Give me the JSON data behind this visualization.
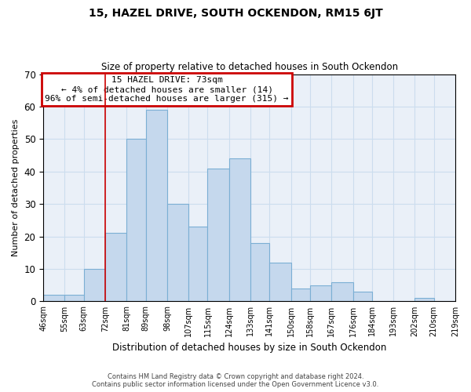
{
  "title": "15, HAZEL DRIVE, SOUTH OCKENDON, RM15 6JT",
  "subtitle": "Size of property relative to detached houses in South Ockendon",
  "xlabel": "Distribution of detached houses by size in South Ockendon",
  "ylabel": "Number of detached properties",
  "bar_color": "#c5d8ed",
  "bar_edge_color": "#7bafd4",
  "annotation_line1": "15 HAZEL DRIVE: 73sqm",
  "annotation_line2": "← 4% of detached houses are smaller (14)",
  "annotation_line3": "96% of semi-detached houses are larger (315) →",
  "annotation_box_color": "#cc0000",
  "vline_color": "#cc0000",
  "footer_line1": "Contains HM Land Registry data © Crown copyright and database right 2024.",
  "footer_line2": "Contains public sector information licensed under the Open Government Licence v3.0.",
  "bins": [
    46,
    55,
    63,
    72,
    81,
    89,
    98,
    107,
    115,
    124,
    133,
    141,
    150,
    158,
    167,
    176,
    184,
    193,
    202,
    210,
    219
  ],
  "values": [
    2,
    2,
    10,
    21,
    50,
    59,
    30,
    23,
    41,
    44,
    18,
    12,
    4,
    5,
    6,
    3,
    0,
    0,
    1,
    0
  ],
  "tick_labels": [
    "46sqm",
    "55sqm",
    "63sqm",
    "72sqm",
    "81sqm",
    "89sqm",
    "98sqm",
    "107sqm",
    "115sqm",
    "124sqm",
    "133sqm",
    "141sqm",
    "150sqm",
    "158sqm",
    "167sqm",
    "176sqm",
    "184sqm",
    "193sqm",
    "202sqm",
    "210sqm",
    "219sqm"
  ],
  "ylim": [
    0,
    70
  ],
  "yticks": [
    0,
    10,
    20,
    30,
    40,
    50,
    60,
    70
  ],
  "grid_color": "#ccddee",
  "bg_color": "#eaf0f8",
  "vline_x": 72
}
